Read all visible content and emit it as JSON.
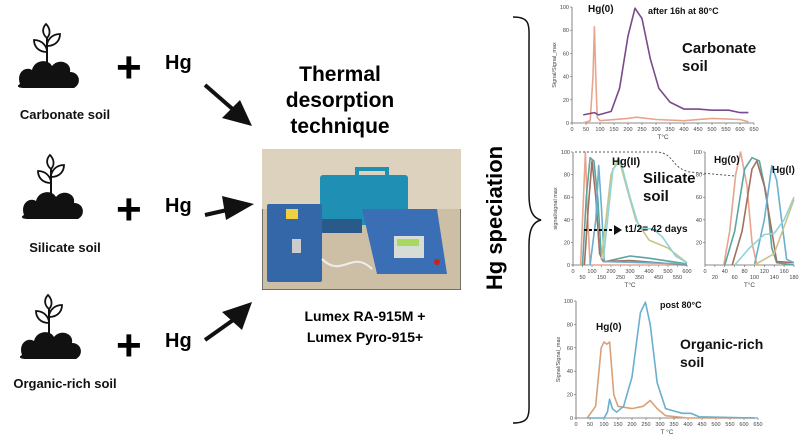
{
  "soils": [
    {
      "label": "Carbonate soil",
      "plus": "+",
      "element": "Hg"
    },
    {
      "label": "Silicate soil",
      "plus": "+",
      "element": "Hg"
    },
    {
      "label": "Organic-rich soil",
      "plus": "+",
      "element": "Hg"
    }
  ],
  "technique": {
    "title_lines": [
      "Thermal",
      "desorption",
      "technique"
    ],
    "instruments": [
      "Lumex RA-915M +",
      "Lumex Pyro-915+"
    ]
  },
  "speciation_label": "Hg speciation",
  "colors": {
    "salmon": "#e8a58e",
    "purple": "#7a4a8a",
    "orange": "#d9a07a",
    "blue": "#6aaed0",
    "teal": "#5aa6a0",
    "olive": "#c9c48a",
    "cyan": "#8fd4d8",
    "brown": "#a07060"
  },
  "charts": [
    {
      "id": "carbonate",
      "title": "Carbonate soil",
      "annotations": [
        "Hg(0)",
        "after 16h at 80°C"
      ],
      "xlabel": "T°C",
      "ylabel": "Signal/Signal_max",
      "xticks": [
        0,
        50,
        100,
        150,
        200,
        250,
        300,
        350,
        400,
        450,
        500,
        550,
        600,
        650
      ],
      "yticks": [
        0,
        20,
        40,
        60,
        80,
        100
      ],
      "series": [
        {
          "color": "#e8a58e",
          "points": [
            [
              40,
              0
            ],
            [
              65,
              2
            ],
            [
              75,
              40
            ],
            [
              80,
              83
            ],
            [
              85,
              40
            ],
            [
              90,
              5
            ],
            [
              100,
              2
            ],
            [
              200,
              4
            ],
            [
              230,
              5
            ],
            [
              300,
              3
            ],
            [
              400,
              2
            ],
            [
              500,
              4
            ],
            [
              600,
              3
            ],
            [
              630,
              1
            ]
          ]
        },
        {
          "color": "#7a4a8a",
          "points": [
            [
              40,
              7
            ],
            [
              80,
              9
            ],
            [
              95,
              7
            ],
            [
              140,
              10
            ],
            [
              170,
              30
            ],
            [
              200,
              75
            ],
            [
              225,
              99
            ],
            [
              250,
              90
            ],
            [
              280,
              55
            ],
            [
              310,
              30
            ],
            [
              350,
              18
            ],
            [
              400,
              12
            ],
            [
              450,
              12
            ],
            [
              500,
              11
            ],
            [
              560,
              11
            ],
            [
              600,
              9
            ],
            [
              630,
              9
            ]
          ]
        }
      ]
    },
    {
      "id": "silicate",
      "title": "Silicate soil",
      "annotations": [
        "Hg(II)",
        "t1/2= 42 days"
      ],
      "xlabel": "T°C",
      "ylabel": "signal/signal max",
      "xticks": [
        0,
        50,
        100,
        150,
        200,
        250,
        300,
        350,
        400,
        450,
        500,
        550,
        600
      ],
      "yticks": [
        0,
        20,
        40,
        60,
        80,
        100
      ],
      "series": [
        {
          "color": "#e8a58e",
          "points": [
            [
              40,
              0
            ],
            [
              55,
              60
            ],
            [
              65,
              100
            ],
            [
              75,
              50
            ],
            [
              90,
              0
            ],
            [
              600,
              0
            ]
          ]
        },
        {
          "color": "#5aa6a0",
          "points": [
            [
              50,
              0
            ],
            [
              70,
              60
            ],
            [
              90,
              95
            ],
            [
              110,
              92
            ],
            [
              130,
              60
            ],
            [
              150,
              5
            ],
            [
              170,
              3
            ],
            [
              250,
              6
            ],
            [
              300,
              8
            ],
            [
              400,
              6
            ],
            [
              600,
              1
            ]
          ]
        },
        {
          "color": "#a07060",
          "points": [
            [
              60,
              0
            ],
            [
              80,
              50
            ],
            [
              100,
              92
            ],
            [
              120,
              60
            ],
            [
              140,
              10
            ],
            [
              160,
              3
            ],
            [
              300,
              4
            ],
            [
              600,
              0
            ]
          ]
        },
        {
          "color": "#6aaed0",
          "points": [
            [
              90,
              0
            ],
            [
              120,
              40
            ],
            [
              135,
              88
            ],
            [
              150,
              50
            ],
            [
              165,
              3
            ],
            [
              600,
              1
            ]
          ]
        },
        {
          "color": "#c9c48a",
          "points": [
            [
              150,
              5
            ],
            [
              200,
              80
            ],
            [
              240,
              95
            ],
            [
              280,
              70
            ],
            [
              330,
              40
            ],
            [
              400,
              22
            ],
            [
              500,
              15
            ],
            [
              600,
              2
            ]
          ]
        },
        {
          "color": "#8fd4d8",
          "points": [
            [
              160,
              5
            ],
            [
              210,
              85
            ],
            [
              250,
              92
            ],
            [
              300,
              60
            ],
            [
              350,
              32
            ],
            [
              420,
              32
            ],
            [
              470,
              25
            ],
            [
              540,
              8
            ],
            [
              600,
              2
            ]
          ]
        }
      ]
    },
    {
      "id": "silicate-zoom",
      "title": "",
      "annotations": [
        "Hg(0)",
        "Hg(I)"
      ],
      "xlabel": "T°C",
      "ylabel": "",
      "xticks": [
        0,
        20,
        40,
        60,
        80,
        100,
        120,
        140,
        160,
        180
      ],
      "yticks": [
        20,
        40,
        60,
        80,
        100
      ],
      "series": [
        {
          "color": "#e8a58e",
          "points": [
            [
              38,
              0
            ],
            [
              50,
              30
            ],
            [
              62,
              80
            ],
            [
              72,
              100
            ],
            [
              85,
              70
            ],
            [
              95,
              20
            ],
            [
              105,
              0
            ]
          ]
        },
        {
          "color": "#5aa6a0",
          "points": [
            [
              40,
              0
            ],
            [
              60,
              30
            ],
            [
              80,
              85
            ],
            [
              95,
              95
            ],
            [
              110,
              92
            ],
            [
              125,
              60
            ],
            [
              135,
              15
            ],
            [
              145,
              2
            ],
            [
              180,
              0
            ]
          ]
        },
        {
          "color": "#a07060",
          "points": [
            [
              55,
              0
            ],
            [
              75,
              30
            ],
            [
              95,
              85
            ],
            [
              105,
              92
            ],
            [
              120,
              70
            ],
            [
              135,
              30
            ],
            [
              145,
              3
            ],
            [
              180,
              2
            ]
          ]
        },
        {
          "color": "#6aaed0",
          "points": [
            [
              100,
              0
            ],
            [
              120,
              40
            ],
            [
              135,
              88
            ],
            [
              145,
              75
            ],
            [
              155,
              40
            ],
            [
              165,
              5
            ],
            [
              180,
              2
            ]
          ]
        },
        {
          "color": "#8fd4d8",
          "points": [
            [
              60,
              0
            ],
            [
              90,
              15
            ],
            [
              120,
              27
            ],
            [
              140,
              28
            ],
            [
              160,
              40
            ],
            [
              180,
              60
            ]
          ]
        },
        {
          "color": "#c9c48a",
          "points": [
            [
              100,
              0
            ],
            [
              140,
              10
            ],
            [
              180,
              58
            ]
          ]
        }
      ]
    },
    {
      "id": "organic",
      "title": "Organic-rich soil",
      "annotations": [
        "Hg(0)",
        "post 80°C"
      ],
      "xlabel": "T °C",
      "ylabel": "Signal/Signal_max",
      "xticks": [
        0,
        50,
        100,
        150,
        200,
        250,
        300,
        350,
        400,
        450,
        500,
        550,
        600,
        650
      ],
      "yticks": [
        0,
        20,
        40,
        60,
        80,
        100
      ],
      "series": [
        {
          "color": "#d9a07a",
          "points": [
            [
              40,
              0
            ],
            [
              70,
              10
            ],
            [
              90,
              60
            ],
            [
              100,
              65
            ],
            [
              110,
              63
            ],
            [
              120,
              65
            ],
            [
              135,
              20
            ],
            [
              150,
              10
            ],
            [
              200,
              8
            ],
            [
              240,
              10
            ],
            [
              265,
              15
            ],
            [
              290,
              8
            ],
            [
              320,
              2
            ],
            [
              400,
              0
            ],
            [
              640,
              0
            ]
          ]
        },
        {
          "color": "#6aaed0",
          "points": [
            [
              40,
              0
            ],
            [
              100,
              0
            ],
            [
              112,
              5
            ],
            [
              120,
              16
            ],
            [
              130,
              8
            ],
            [
              145,
              5
            ],
            [
              170,
              10
            ],
            [
              200,
              35
            ],
            [
              230,
              90
            ],
            [
              248,
              99
            ],
            [
              265,
              80
            ],
            [
              290,
              30
            ],
            [
              320,
              8
            ],
            [
              350,
              6
            ],
            [
              380,
              4
            ],
            [
              410,
              4
            ],
            [
              440,
              1
            ],
            [
              640,
              0
            ]
          ]
        }
      ]
    }
  ]
}
